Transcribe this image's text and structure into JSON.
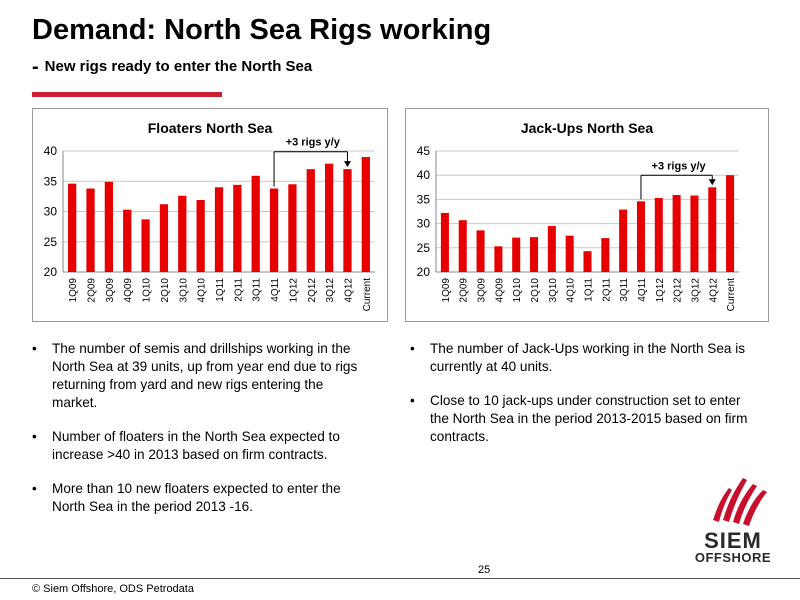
{
  "title": "Demand: North Sea Rigs working",
  "subtitle": "New rigs ready to enter the North Sea",
  "chart_data": [
    {
      "type": "bar",
      "title": "Floaters North Sea",
      "categories": [
        "1Q09",
        "2Q09",
        "3Q09",
        "4Q09",
        "1Q10",
        "2Q10",
        "3Q10",
        "4Q10",
        "1Q11",
        "2Q11",
        "3Q11",
        "4Q11",
        "1Q12",
        "2Q12",
        "3Q12",
        "4Q12",
        "Current"
      ],
      "values": [
        34.6,
        33.8,
        34.9,
        30.3,
        28.7,
        31.2,
        32.6,
        31.9,
        34.0,
        34.4,
        35.9,
        33.8,
        34.5,
        37.0,
        37.9,
        37.0,
        39.0
      ],
      "ylim": [
        20,
        40
      ],
      "yticks": [
        "20",
        "25",
        "30",
        "35",
        "40"
      ],
      "annotation": "+3 rigs y/y",
      "annotation_from": 11,
      "annotation_to": 15,
      "bar_color": "#e60000",
      "grid": true
    },
    {
      "type": "bar",
      "title": "Jack-Ups North Sea",
      "categories": [
        "1Q09",
        "2Q09",
        "3Q09",
        "4Q09",
        "1Q10",
        "2Q10",
        "3Q10",
        "4Q10",
        "1Q11",
        "2Q11",
        "3Q11",
        "4Q11",
        "1Q12",
        "2Q12",
        "3Q12",
        "4Q12",
        "Current"
      ],
      "values": [
        32.2,
        30.7,
        28.6,
        25.3,
        27.1,
        27.2,
        29.5,
        27.5,
        24.3,
        27.0,
        32.9,
        34.6,
        35.3,
        35.9,
        35.8,
        37.5,
        40.0
      ],
      "ylim": [
        20,
        45
      ],
      "yticks": [
        "20",
        "25",
        "30",
        "35",
        "40",
        "45"
      ],
      "annotation": "+3 rigs y/y",
      "annotation_from": 11,
      "annotation_to": 15,
      "bar_color": "#e60000",
      "grid": true
    }
  ],
  "left_bullets": [
    "The number of semis and drillships working in the North Sea at 39 units, up from year end due to rigs returning from yard and new rigs entering the market.",
    "Number of floaters in the North Sea expected to increase >40 in 2013 based on firm contracts.",
    "More than 10 new floaters expected to enter the North Sea in the period 2013 -16."
  ],
  "right_bullets": [
    "The number of Jack-Ups working in the North Sea is currently at 40 units.",
    "Close to 10 jack-ups under construction set to enter the North Sea in the period 2013-2015 based on firm contracts."
  ],
  "page_number": "25",
  "footer": "© Siem Offshore, ODS Petrodata",
  "logo": {
    "line1": "SIEM",
    "line2": "OFFSHORE"
  },
  "colors": {
    "brand_red": "#cc1f2f",
    "bar_red": "#e60000"
  }
}
